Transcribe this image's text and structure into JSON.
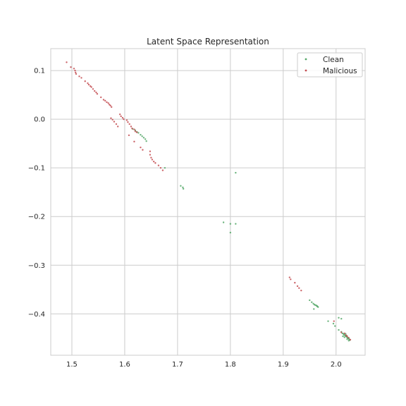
{
  "chart_data": {
    "type": "scatter",
    "title": "Latent Space Representation",
    "xlabel": "",
    "ylabel": "",
    "xlim": [
      1.46,
      2.055
    ],
    "ylim": [
      -0.485,
      0.145
    ],
    "xticks": [
      1.5,
      1.6,
      1.7,
      1.8,
      1.9,
      2.0
    ],
    "xtick_labels": [
      "1.5",
      "1.6",
      "1.7",
      "1.8",
      "1.9",
      "2.0"
    ],
    "yticks": [
      0.1,
      0.0,
      -0.1,
      -0.2,
      -0.3,
      -0.4
    ],
    "ytick_labels": [
      "0.1",
      "0.0",
      "−0.1",
      "−0.2",
      "−0.3",
      "−0.4"
    ],
    "grid": true,
    "legend_position": "top-right",
    "series": [
      {
        "name": "Clean",
        "color": "#55a868",
        "points": [
          [
            1.615,
            -0.02
          ],
          [
            1.62,
            -0.023
          ],
          [
            1.623,
            -0.026
          ],
          [
            1.626,
            -0.028
          ],
          [
            1.63,
            -0.032
          ],
          [
            1.633,
            -0.035
          ],
          [
            1.636,
            -0.038
          ],
          [
            1.639,
            -0.041
          ],
          [
            1.641,
            -0.045
          ],
          [
            1.676,
            -0.1
          ],
          [
            1.706,
            -0.137
          ],
          [
            1.71,
            -0.14
          ],
          [
            1.711,
            -0.143
          ],
          [
            1.81,
            -0.11
          ],
          [
            1.787,
            -0.212
          ],
          [
            1.8,
            -0.215
          ],
          [
            1.81,
            -0.215
          ],
          [
            1.8,
            -0.233
          ],
          [
            1.95,
            -0.372
          ],
          [
            1.954,
            -0.376
          ],
          [
            1.957,
            -0.379
          ],
          [
            1.959,
            -0.381
          ],
          [
            1.961,
            -0.382
          ],
          [
            1.963,
            -0.383
          ],
          [
            1.964,
            -0.384
          ],
          [
            1.965,
            -0.385
          ],
          [
            1.966,
            -0.386
          ],
          [
            1.958,
            -0.39
          ],
          [
            1.985,
            -0.415
          ],
          [
            1.995,
            -0.42
          ],
          [
            2.005,
            -0.408
          ],
          [
            2.01,
            -0.41
          ],
          [
            1.998,
            -0.425
          ],
          [
            2.005,
            -0.433
          ],
          [
            2.01,
            -0.437
          ],
          [
            2.012,
            -0.44
          ],
          [
            2.014,
            -0.441
          ],
          [
            2.015,
            -0.443
          ],
          [
            2.017,
            -0.444
          ],
          [
            2.018,
            -0.445
          ],
          [
            2.019,
            -0.446
          ],
          [
            2.02,
            -0.447
          ],
          [
            2.021,
            -0.448
          ],
          [
            2.022,
            -0.449
          ],
          [
            2.023,
            -0.45
          ],
          [
            2.024,
            -0.451
          ],
          [
            2.025,
            -0.452
          ],
          [
            2.026,
            -0.454
          ],
          [
            2.013,
            -0.446
          ],
          [
            2.016,
            -0.448
          ],
          [
            2.021,
            -0.452
          ],
          [
            2.024,
            -0.455
          ],
          [
            2.018,
            -0.441
          ],
          [
            2.02,
            -0.445
          ]
        ]
      },
      {
        "name": "Malicious",
        "color": "#c44e52",
        "points": [
          [
            1.49,
            0.117
          ],
          [
            1.498,
            0.107
          ],
          [
            1.504,
            0.104
          ],
          [
            1.506,
            0.1
          ],
          [
            1.507,
            0.096
          ],
          [
            1.508,
            0.093
          ],
          [
            1.514,
            0.088
          ],
          [
            1.518,
            0.085
          ],
          [
            1.525,
            0.078
          ],
          [
            1.53,
            0.074
          ],
          [
            1.532,
            0.071
          ],
          [
            1.535,
            0.068
          ],
          [
            1.537,
            0.066
          ],
          [
            1.54,
            0.062
          ],
          [
            1.543,
            0.058
          ],
          [
            1.546,
            0.055
          ],
          [
            1.548,
            0.052
          ],
          [
            1.555,
            0.045
          ],
          [
            1.56,
            0.04
          ],
          [
            1.563,
            0.038
          ],
          [
            1.566,
            0.035
          ],
          [
            1.569,
            0.033
          ],
          [
            1.571,
            0.03
          ],
          [
            1.573,
            0.028
          ],
          [
            1.575,
            0.025
          ],
          [
            1.574,
            0.002
          ],
          [
            1.577,
            -0.001
          ],
          [
            1.58,
            -0.005
          ],
          [
            1.584,
            -0.01
          ],
          [
            1.587,
            -0.015
          ],
          [
            1.591,
            0.01
          ],
          [
            1.593,
            0.006
          ],
          [
            1.596,
            0.003
          ],
          [
            1.598,
            0.0
          ],
          [
            1.604,
            -0.002
          ],
          [
            1.606,
            -0.006
          ],
          [
            1.609,
            -0.01
          ],
          [
            1.612,
            -0.015
          ],
          [
            1.614,
            -0.019
          ],
          [
            1.618,
            -0.021
          ],
          [
            1.62,
            -0.025
          ],
          [
            1.623,
            -0.027
          ],
          [
            1.608,
            -0.033
          ],
          [
            1.618,
            -0.046
          ],
          [
            1.63,
            -0.058
          ],
          [
            1.634,
            -0.063
          ],
          [
            1.648,
            -0.066
          ],
          [
            1.648,
            -0.073
          ],
          [
            1.65,
            -0.079
          ],
          [
            1.652,
            -0.083
          ],
          [
            1.655,
            -0.087
          ],
          [
            1.658,
            -0.09
          ],
          [
            1.664,
            -0.095
          ],
          [
            1.668,
            -0.1
          ],
          [
            1.672,
            -0.105
          ],
          [
            1.912,
            -0.325
          ],
          [
            1.914,
            -0.329
          ],
          [
            1.922,
            -0.336
          ],
          [
            1.927,
            -0.343
          ],
          [
            1.93,
            -0.347
          ],
          [
            1.934,
            -0.352
          ],
          [
            1.996,
            -0.415
          ],
          [
            2.01,
            -0.438
          ],
          [
            2.016,
            -0.44
          ],
          [
            2.019,
            -0.444
          ],
          [
            2.021,
            -0.446
          ],
          [
            2.024,
            -0.449
          ],
          [
            2.027,
            -0.453
          ]
        ]
      }
    ]
  }
}
